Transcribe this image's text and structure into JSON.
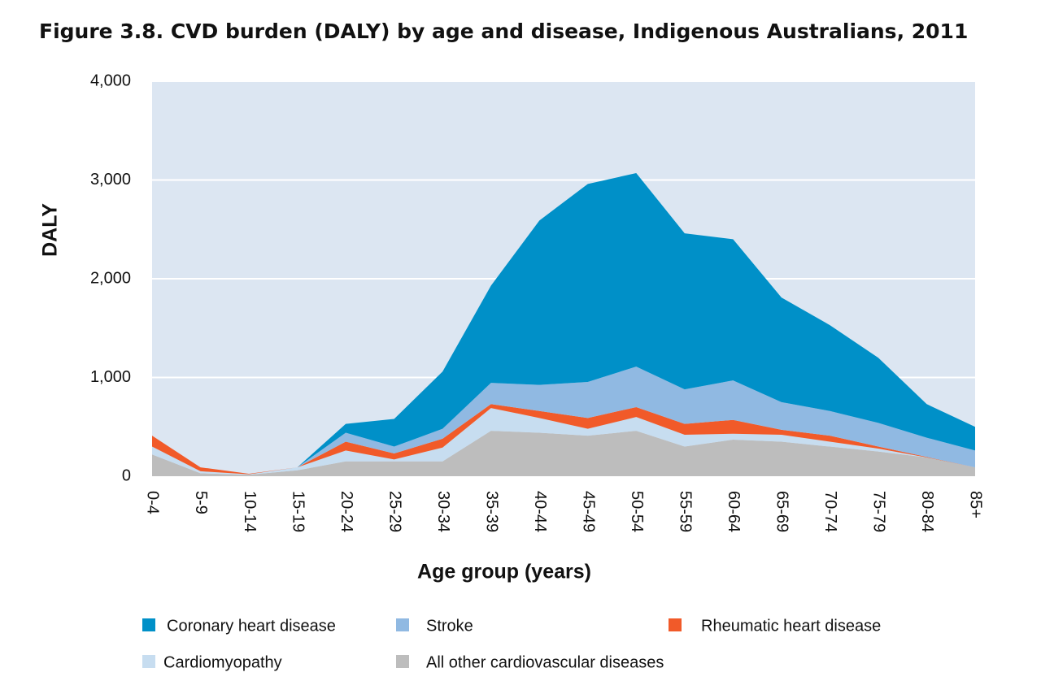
{
  "chart_data": {
    "type": "stacked-area",
    "title": "Figure 3.8. CVD burden (DALY) by age and disease, Indigenous Australians, 2011",
    "x_label": "Age group (years)",
    "y_label": "DALY",
    "categories": [
      "0-4",
      "5-9",
      "10-14",
      "15-19",
      "20-24",
      "25-29",
      "30-34",
      "35-39",
      "40-44",
      "45-49",
      "50-54",
      "55-59",
      "60-64",
      "65-69",
      "70-74",
      "75-79",
      "80-84",
      "85+"
    ],
    "series": [
      {
        "name": "Coronary heart disease",
        "color": "#0090c8",
        "values": [
          0,
          0,
          0,
          0,
          90,
          280,
          580,
          985,
          1665,
          2005,
          1960,
          1580,
          1430,
          1060,
          870,
          660,
          340,
          240
        ]
      },
      {
        "name": "Stroke",
        "color": "#90b9e2",
        "values": [
          0,
          0,
          0,
          0,
          90,
          70,
          100,
          215,
          265,
          365,
          410,
          350,
          400,
          280,
          250,
          240,
          195,
          170
        ]
      },
      {
        "name": "Rheumatic heart disease",
        "color": "#f15a29",
        "values": [
          110,
          40,
          5,
          0,
          90,
          60,
          90,
          40,
          70,
          110,
          100,
          110,
          140,
          50,
          60,
          20,
          5,
          0
        ]
      },
      {
        "name": "Cardiomyopathy",
        "color": "#c7ddf0",
        "values": [
          80,
          20,
          5,
          30,
          110,
          20,
          140,
          230,
          150,
          70,
          140,
          120,
          60,
          70,
          50,
          30,
          0,
          0
        ]
      },
      {
        "name": "All other cardiovascular diseases",
        "color": "#bdbdbd",
        "values": [
          220,
          30,
          15,
          60,
          150,
          150,
          150,
          460,
          440,
          410,
          460,
          300,
          370,
          350,
          300,
          250,
          190,
          90
        ]
      }
    ],
    "ylim": [
      0,
      4000
    ],
    "yticks": [
      0,
      {
        "value": 1000,
        "label": "1,000"
      },
      {
        "value": 2000,
        "label": "2,000"
      },
      {
        "value": 3000,
        "label": "3,000"
      },
      {
        "value": 4000,
        "label": "4,000"
      }
    ],
    "grid": true
  }
}
